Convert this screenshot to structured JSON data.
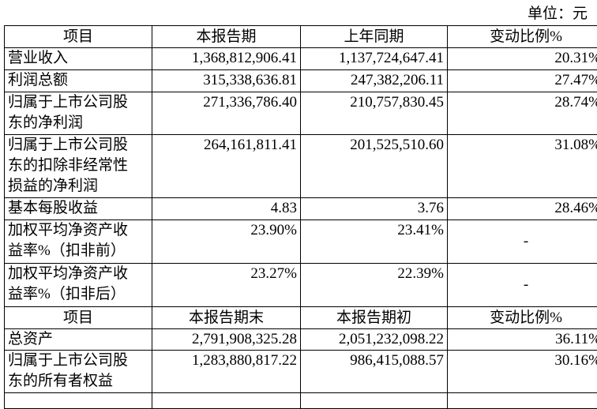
{
  "unit": "单位：元",
  "header1": [
    "项目",
    "本报告期",
    "上年同期",
    "变动比例%"
  ],
  "rows1": [
    {
      "item": [
        "营业收入"
      ],
      "cur": "1,368,812,906.41",
      "prev": "1,137,724,647.41",
      "chg": "20.31%"
    },
    {
      "item": [
        "利润总额"
      ],
      "cur": "315,338,636.81",
      "prev": "247,382,206.11",
      "chg": "27.47%"
    },
    {
      "item": [
        "归属于上市公司股",
        "东的净利润"
      ],
      "cur": "271,336,786.40",
      "prev": "210,757,830.45",
      "chg": "28.74%"
    },
    {
      "item": [
        "归属于上市公司股",
        "东的扣除非经常性",
        "损益的净利润"
      ],
      "cur": "264,161,811.41",
      "prev": "201,525,510.60",
      "chg": "31.08%"
    },
    {
      "item": [
        "基本每股收益"
      ],
      "cur": "4.83",
      "prev": "3.76",
      "chg": "28.46%"
    },
    {
      "item": [
        "加权平均净资产收",
        "益率%（扣非前）"
      ],
      "cur": "23.90%",
      "prev": "23.41%",
      "chg": "-"
    },
    {
      "item": [
        "加权平均净资产收",
        "益率%（扣非后）"
      ],
      "cur": "23.27%",
      "prev": "22.39%",
      "chg": "-"
    }
  ],
  "header2": [
    "项目",
    "本报告期末",
    "本报告期初",
    "变动比例%"
  ],
  "rows2": [
    {
      "item": [
        "总资产"
      ],
      "cur": "2,791,908,325.28",
      "prev": "2,051,232,098.22",
      "chg": "36.11%"
    },
    {
      "item": [
        "归属于上市公司股",
        "东的所有者权益"
      ],
      "cur": "1,283,880,817.22",
      "prev": "986,415,088.57",
      "chg": "30.16%"
    }
  ]
}
